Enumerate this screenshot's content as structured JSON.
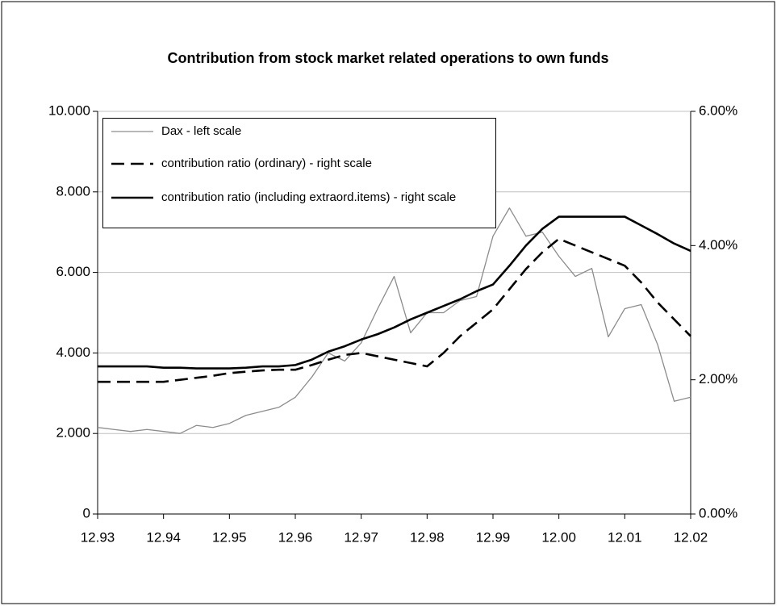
{
  "chart_data": {
    "type": "line",
    "title": "Contribution from stock market related operations to own funds",
    "categories": [
      "12.93",
      null,
      null,
      null,
      "12.94",
      null,
      null,
      null,
      "12.95",
      null,
      null,
      null,
      "12.96",
      null,
      null,
      null,
      "12.97",
      null,
      null,
      null,
      "12.98",
      null,
      null,
      null,
      "12.99",
      null,
      null,
      null,
      "12.00",
      null,
      null,
      null,
      "12.01",
      null,
      null,
      null,
      "12.02"
    ],
    "series": [
      {
        "name": "Dax - left scale",
        "color": "#8c8c8c",
        "style": "solid",
        "values": [
          2150,
          2100,
          2050,
          2100,
          2050,
          2000,
          2200,
          2150,
          2250,
          2450,
          2550,
          2650,
          2900,
          3400,
          4000,
          3800,
          4250,
          5100,
          5900,
          4500,
          5000,
          5000,
          5300,
          5400,
          6900,
          7600,
          6900,
          7000,
          6400,
          5900,
          6100,
          4400,
          5100,
          5200,
          4200,
          2800,
          2900
        ]
      },
      {
        "name": "contribution ratio (ordinary) - right scale",
        "color": "#000000",
        "style": "dashed",
        "axis": "y2",
        "values": [
          1.97,
          1.97,
          1.97,
          1.97,
          1.97,
          2.0,
          2.03,
          2.06,
          2.1,
          2.12,
          2.14,
          2.15,
          2.15,
          2.22,
          2.3,
          2.37,
          2.4,
          2.35,
          2.3,
          2.25,
          2.2,
          2.4,
          2.65,
          2.85,
          3.05,
          3.35,
          3.65,
          3.9,
          4.1,
          4.0,
          3.9,
          3.8,
          3.7,
          3.45,
          3.15,
          2.9,
          2.65
        ]
      },
      {
        "name": "contribution ratio (including extraord.items) - right scale",
        "color": "#000000",
        "style": "solid",
        "axis": "y2",
        "values": [
          2.2,
          2.2,
          2.2,
          2.2,
          2.18,
          2.18,
          2.17,
          2.17,
          2.17,
          2.18,
          2.2,
          2.2,
          2.22,
          2.3,
          2.42,
          2.5,
          2.6,
          2.68,
          2.78,
          2.9,
          3.0,
          3.1,
          3.2,
          3.32,
          3.42,
          3.7,
          4.0,
          4.25,
          4.43,
          4.43,
          4.43,
          4.43,
          4.43,
          4.3,
          4.17,
          4.03,
          3.92
        ]
      }
    ],
    "ylim": [
      0,
      10000
    ],
    "yticks": [
      0,
      {
        "value": 2000,
        "label": "2.000"
      },
      {
        "value": 4000,
        "label": "4.000"
      },
      {
        "value": 6000,
        "label": "6.000"
      },
      {
        "value": 8000,
        "label": "8.000"
      },
      {
        "value": 10000,
        "label": "10.000"
      }
    ],
    "y2lim": [
      0,
      6
    ],
    "y2ticks": [
      {
        "value": 0,
        "label": "0.00%"
      },
      {
        "value": 2,
        "label": "2.00%"
      },
      {
        "value": 4,
        "label": "4.00%"
      },
      {
        "value": 6,
        "label": "6.00%"
      }
    ],
    "grid": true,
    "legend": "upper left"
  }
}
